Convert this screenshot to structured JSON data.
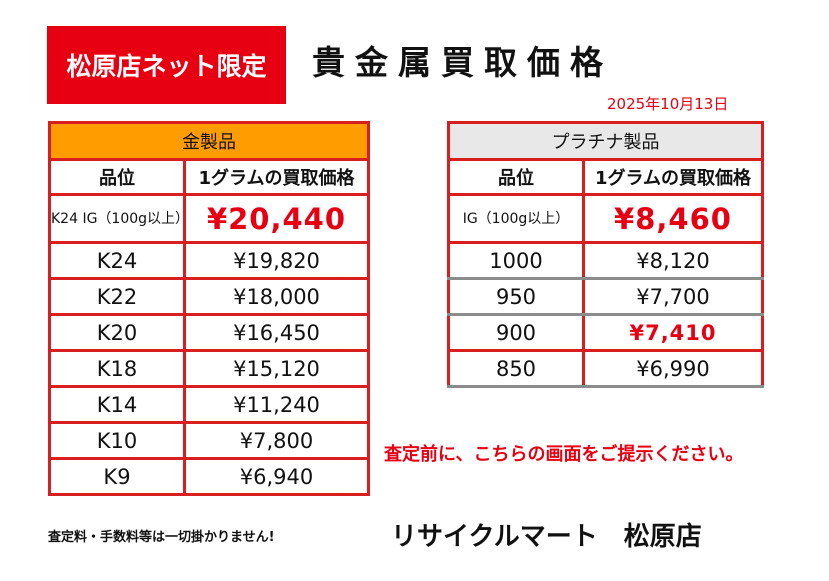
{
  "badge": "松原店ネット限定",
  "title": "貴金属買取価格",
  "date": "2025年10月13日",
  "gold": {
    "header": "金製品",
    "col_grade": "品位",
    "col_price": "1グラムの買取価格",
    "rows": [
      {
        "grade": "K24 IG（100g以上）",
        "price": "¥20,440"
      },
      {
        "grade": "K24",
        "price": "¥19,820"
      },
      {
        "grade": "K22",
        "price": "¥18,000"
      },
      {
        "grade": "K20",
        "price": "¥16,450"
      },
      {
        "grade": "K18",
        "price": "¥15,120"
      },
      {
        "grade": "K14",
        "price": "¥11,240"
      },
      {
        "grade": "K10",
        "price": "¥7,800"
      },
      {
        "grade": "K9",
        "price": "¥6,940"
      }
    ]
  },
  "platinum": {
    "header": "プラチナ製品",
    "col_grade": "品位",
    "col_price": "1グラムの買取価格",
    "rows": [
      {
        "grade": "IG（100g以上）",
        "price": "¥8,460"
      },
      {
        "grade": "1000",
        "price": "¥8,120"
      },
      {
        "grade": "950",
        "price": "¥7,700"
      },
      {
        "grade": "900",
        "price": "¥7,410"
      },
      {
        "grade": "850",
        "price": "¥6,990"
      }
    ]
  },
  "note": "査定前に、こちらの画面をご提示ください。",
  "footer": {
    "fees": "査定料・手数料等は一切掛かりません!",
    "store": "リサイクルマート　松原店"
  },
  "colors": {
    "accent_red": "#e60012",
    "gold_header": "#ff9c00",
    "platinum_header": "#e8e8e8"
  }
}
